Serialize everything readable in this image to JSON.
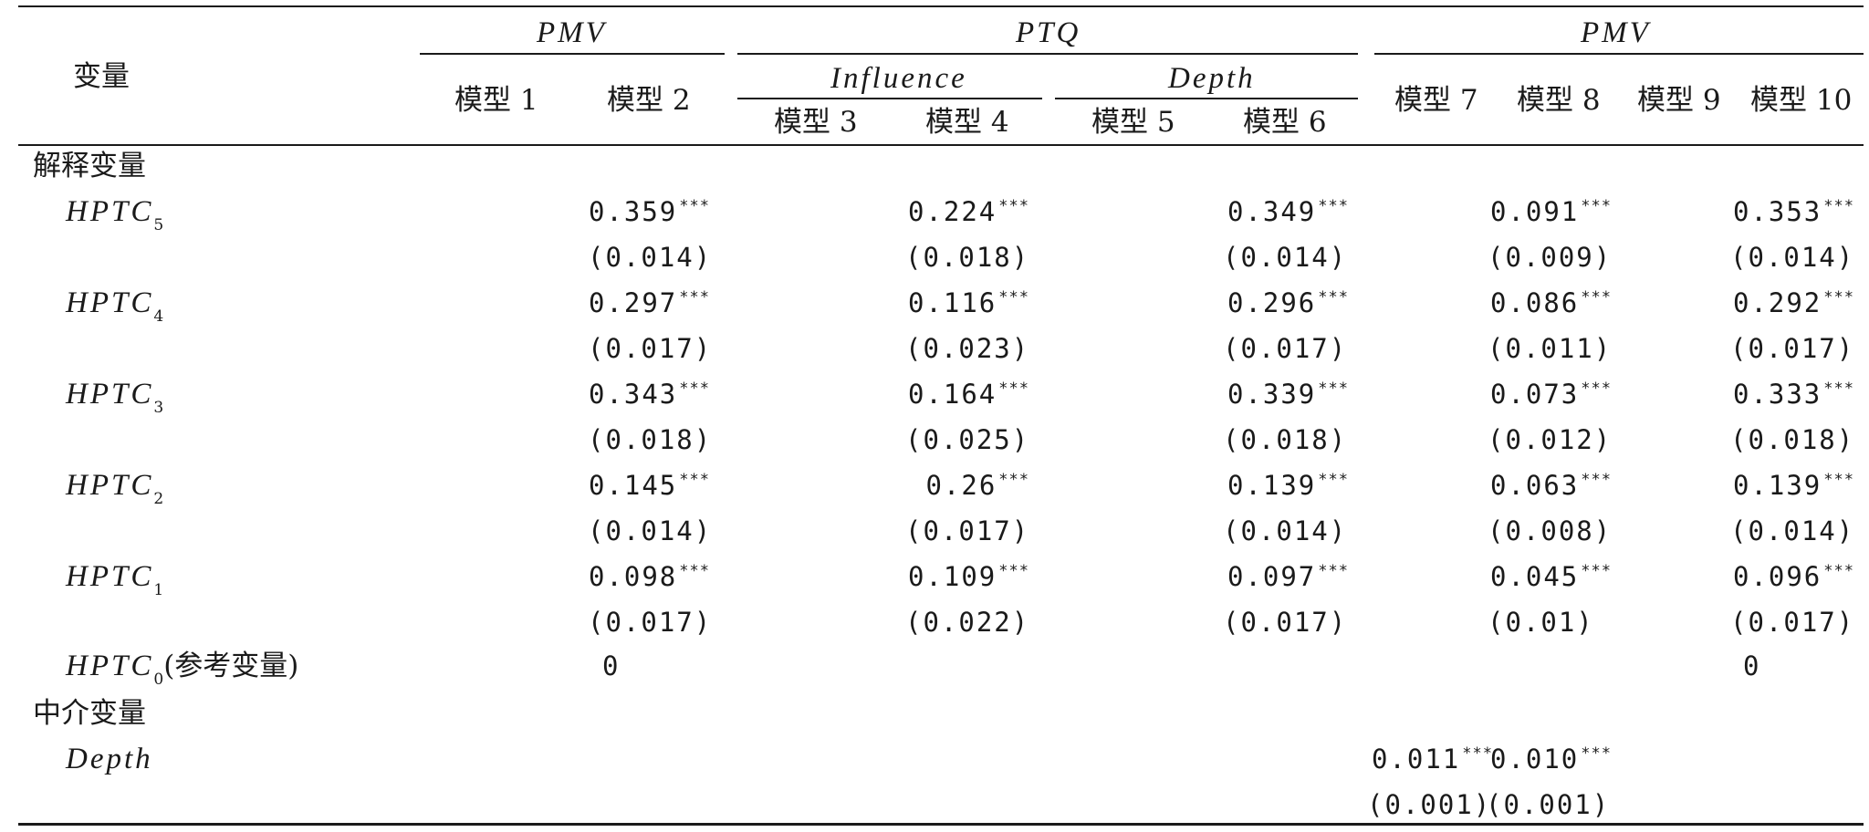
{
  "header": {
    "variable": "变量",
    "groups": [
      "PMV",
      "PTQ",
      "PMV"
    ],
    "subgroups": [
      "Influence",
      "Depth"
    ],
    "models": [
      "模型 1",
      "模型 2",
      "模型 3",
      "模型 4",
      "模型 5",
      "模型 6",
      "模型 7",
      "模型 8",
      "模型 9",
      "模型 10"
    ]
  },
  "sections": {
    "explanatory": "解释变量",
    "mediator": "中介变量"
  },
  "rows": [
    {
      "name": "HPTC",
      "sub": "5",
      "coefs": [
        "0.359",
        "0.224",
        "0.349",
        "0.091",
        "0.353"
      ],
      "ses": [
        "(0.014)",
        "(0.018)",
        "(0.014)",
        "(0.009)",
        "(0.014)"
      ]
    },
    {
      "name": "HPTC",
      "sub": "4",
      "coefs": [
        "0.297",
        "0.116",
        "0.296",
        "0.086",
        "0.292"
      ],
      "ses": [
        "(0.017)",
        "(0.023)",
        "(0.017)",
        "(0.011)",
        "(0.017)"
      ]
    },
    {
      "name": "HPTC",
      "sub": "3",
      "coefs": [
        "0.343",
        "0.164",
        "0.339",
        "0.073",
        "0.333"
      ],
      "ses": [
        "(0.018)",
        "(0.025)",
        "(0.018)",
        "(0.012)",
        "(0.018)"
      ]
    },
    {
      "name": "HPTC",
      "sub": "2",
      "coefs": [
        "0.145",
        "0.26",
        "0.139",
        "0.063",
        "0.139"
      ],
      "ses": [
        "(0.014)",
        "(0.017)",
        "(0.014)",
        "(0.008)",
        "(0.014)"
      ]
    },
    {
      "name": "HPTC",
      "sub": "1",
      "coefs": [
        "0.098",
        "0.109",
        "0.097",
        "0.045",
        "0.096"
      ],
      "ses": [
        "(0.017)",
        "(0.022)",
        "(0.017)",
        "(0.01)",
        "(0.017)"
      ]
    }
  ],
  "stars": "***",
  "reference_row": {
    "name": "HPTC",
    "sub": "0",
    "note": "(参考变量)",
    "values": [
      "0",
      "0"
    ]
  },
  "depth_row": {
    "name": "Depth",
    "coefs": [
      "0.011",
      "0.010"
    ],
    "ses": [
      "(0.001)",
      "(0.001)"
    ]
  }
}
